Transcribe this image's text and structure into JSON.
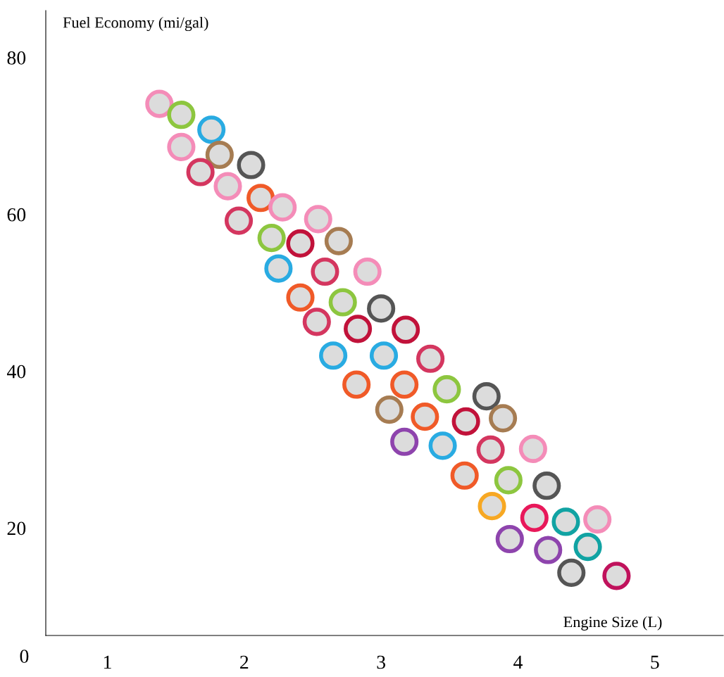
{
  "chart_data": {
    "type": "scatter",
    "xlabel": "Engine Size (L)",
    "ylabel": "Fuel Economy (mi/gal)",
    "xlim": [
      0.55,
      5.5
    ],
    "ylim": [
      6.3,
      86
    ],
    "xticks": [
      1,
      2,
      3,
      4,
      5
    ],
    "yticks": [
      20,
      40,
      60,
      80
    ],
    "annotations": [
      "0"
    ],
    "grid": false,
    "marker": "circle",
    "series": [
      {
        "x": [
          1.38,
          1.54,
          1.76,
          1.54,
          1.82,
          2.05,
          1.68,
          1.88,
          2.12,
          2.28,
          2.54,
          1.96,
          2.2,
          2.41,
          2.69,
          2.25,
          2.59,
          2.9,
          2.41,
          2.72,
          3.0,
          2.53,
          2.83,
          3.18,
          2.65,
          3.02,
          3.36,
          2.82,
          3.17,
          3.48,
          3.77,
          3.06,
          3.32,
          3.62,
          3.89,
          3.17,
          3.45,
          3.8,
          4.11,
          3.61,
          3.93,
          4.21,
          3.81,
          4.12,
          4.35,
          4.58,
          3.94,
          4.22,
          4.51,
          4.39,
          4.72
        ],
        "values": [
          74.1,
          72.7,
          70.8,
          68.6,
          67.6,
          66.3,
          65.4,
          63.6,
          62.1,
          60.9,
          59.4,
          59.2,
          57.0,
          56.3,
          56.6,
          53.1,
          52.7,
          52.7,
          49.4,
          48.8,
          48.0,
          46.3,
          45.4,
          45.3,
          42.0,
          42.0,
          41.6,
          38.3,
          38.3,
          37.7,
          36.8,
          35.1,
          34.2,
          33.6,
          34.0,
          31.0,
          30.5,
          30.0,
          30.1,
          26.7,
          26.1,
          25.4,
          22.8,
          21.3,
          20.8,
          21.1,
          18.6,
          17.2,
          17.6,
          14.3,
          13.9
        ],
        "colors": [
          "#f48cb8",
          "#8dc63f",
          "#29abe2",
          "#f48cb8",
          "#a67c52",
          "#555555",
          "#d4365f",
          "#f48cb8",
          "#f05a28",
          "#f48cb8",
          "#f48cb8",
          "#d4365f",
          "#8dc63f",
          "#c1123a",
          "#a67c52",
          "#29abe2",
          "#d4365f",
          "#f48cb8",
          "#f05a28",
          "#8dc63f",
          "#555555",
          "#d4365f",
          "#c1123a",
          "#c1123a",
          "#29abe2",
          "#29abe2",
          "#d4365f",
          "#f05a28",
          "#f05a28",
          "#8dc63f",
          "#555555",
          "#a67c52",
          "#f05a28",
          "#c1123a",
          "#a67c52",
          "#8e44ad",
          "#29abe2",
          "#d4365f",
          "#f48cb8",
          "#f05a28",
          "#8dc63f",
          "#555555",
          "#f7a823",
          "#e8185a",
          "#11a3a3",
          "#f48cb8",
          "#8e44ad",
          "#8e44ad",
          "#11a3a3",
          "#555555",
          "#c0125c"
        ]
      }
    ]
  }
}
